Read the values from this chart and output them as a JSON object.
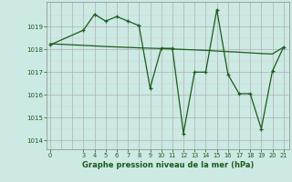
{
  "title": "Graphe pression niveau de la mer (hPa)",
  "background_color": "#cce9e4",
  "line_color": "#1a5c1a",
  "grid_color_major": "#b0b0b0",
  "grid_color_minor": "#d0d0d0",
  "x_ticks": [
    0,
    3,
    4,
    5,
    6,
    7,
    8,
    9,
    10,
    11,
    12,
    13,
    14,
    15,
    16,
    17,
    18,
    19,
    20,
    21
  ],
  "ylim": [
    1013.6,
    1020.1
  ],
  "yticks": [
    1014,
    1015,
    1016,
    1017,
    1018,
    1019
  ],
  "main_series_x": [
    0,
    3,
    4,
    5,
    6,
    7,
    8,
    9,
    10,
    11,
    12,
    13,
    14,
    15,
    16,
    17,
    18,
    19,
    20,
    21
  ],
  "main_series_y": [
    1018.2,
    1018.85,
    1019.55,
    1019.25,
    1019.45,
    1019.25,
    1019.05,
    1016.3,
    1018.05,
    1018.05,
    1014.3,
    1017.0,
    1017.0,
    1019.75,
    1016.9,
    1016.05,
    1016.05,
    1014.5,
    1017.05,
    1018.1
  ],
  "trend_series_x": [
    0,
    3,
    5,
    8,
    10,
    11,
    13,
    14,
    15,
    17,
    18,
    19,
    20,
    21
  ],
  "trend_series_y": [
    1018.25,
    1018.18,
    1018.13,
    1018.07,
    1018.04,
    1018.02,
    1017.98,
    1017.96,
    1017.93,
    1017.88,
    1017.85,
    1017.82,
    1017.8,
    1018.1
  ]
}
